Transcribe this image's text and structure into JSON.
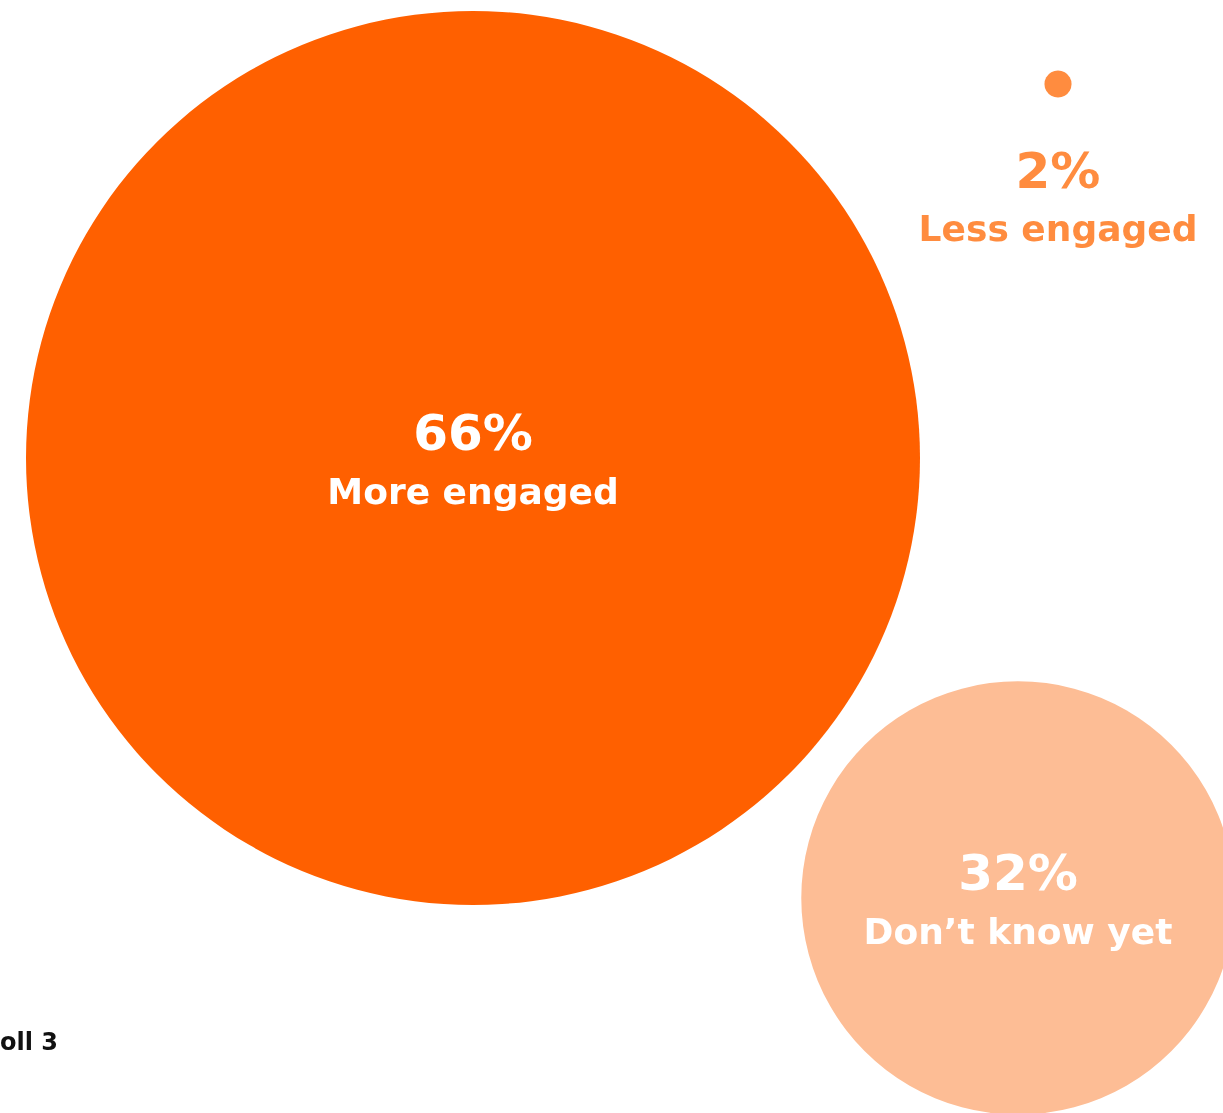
{
  "chart_data": {
    "type": "other",
    "categories": [
      "More engaged",
      "Less engaged",
      "Don’t know yet"
    ],
    "values": [
      66,
      2,
      32
    ],
    "value_labels": [
      "66%",
      "2%",
      "32%"
    ],
    "colors": [
      "#ff6000",
      "#ff8c3f",
      "#fdbd95"
    ],
    "annotations": [
      "oll 3"
    ]
  }
}
